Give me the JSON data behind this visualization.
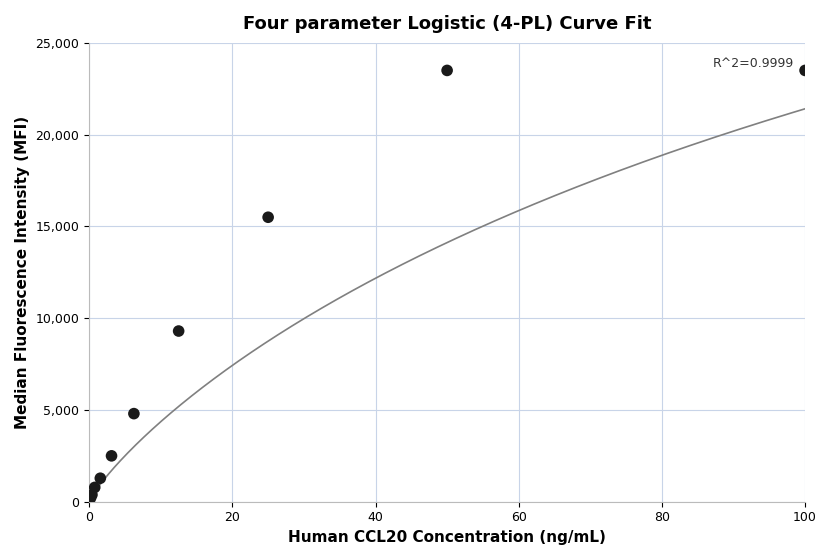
{
  "title": "Four parameter Logistic (4-PL) Curve Fit",
  "xlabel": "Human CCL20 Concentration (ng/mL)",
  "ylabel": "Median Fluorescence Intensity (MFI)",
  "points_x": [
    0.195,
    0.39,
    0.78,
    1.56,
    3.125,
    6.25,
    12.5,
    25.0,
    50.0,
    100.0
  ],
  "points_y": [
    200,
    380,
    780,
    1280,
    2500,
    4800,
    9300,
    15500,
    23500,
    23500
  ],
  "r_squared": "R^2=0.9999",
  "xlim": [
    0,
    100
  ],
  "ylim": [
    0,
    25000
  ],
  "background_color": "#ffffff",
  "grid_color": "#c8d4e8",
  "line_color": "#808080",
  "dot_color": "#1a1a1a",
  "dot_size": 70,
  "title_fontsize": 13,
  "label_fontsize": 11,
  "tick_fontsize": 9,
  "annotation_fontsize": 9
}
